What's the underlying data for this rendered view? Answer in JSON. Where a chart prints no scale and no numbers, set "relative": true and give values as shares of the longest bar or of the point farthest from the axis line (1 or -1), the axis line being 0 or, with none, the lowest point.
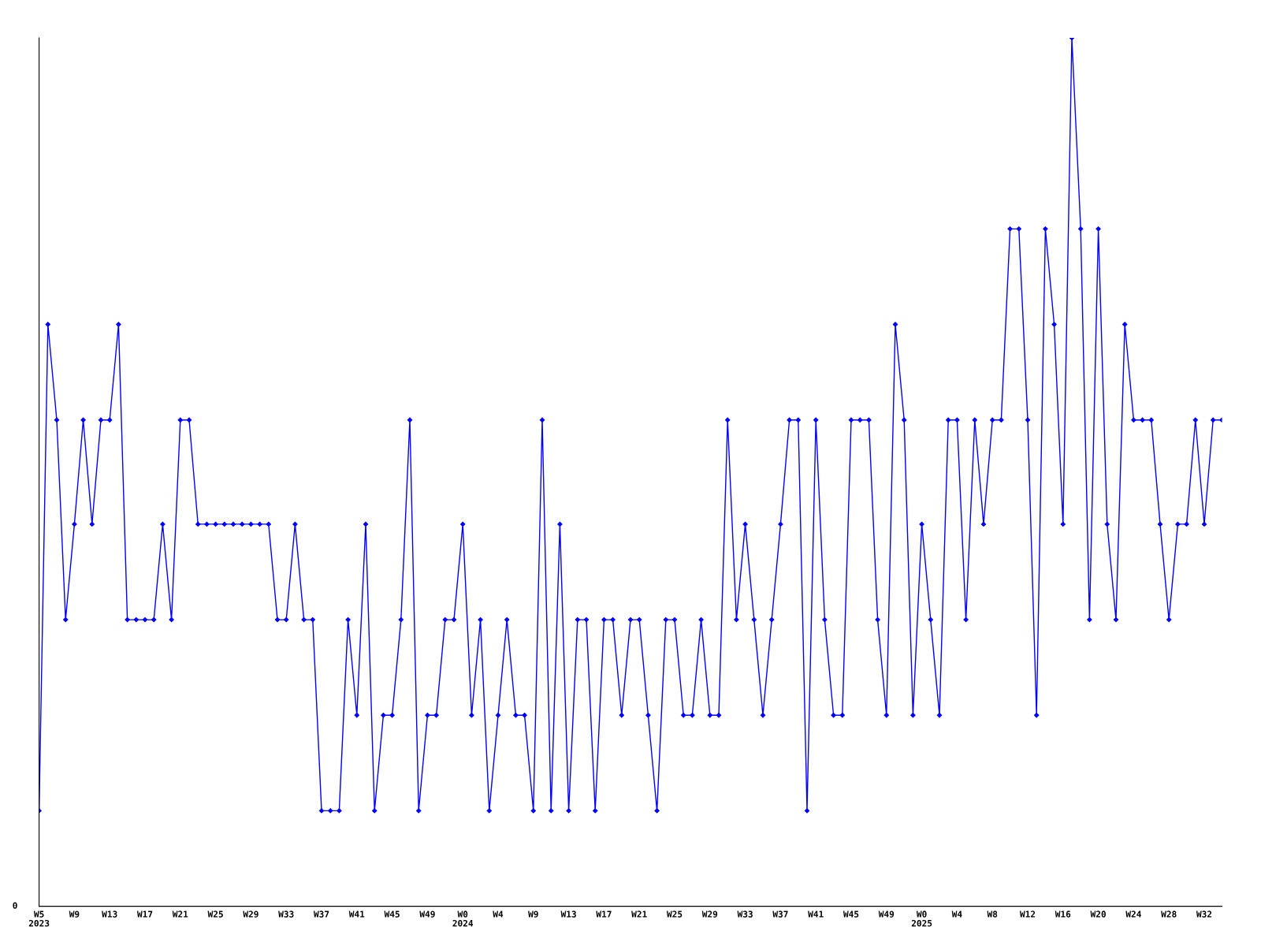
{
  "chart_data": {
    "type": "line",
    "relative": true,
    "color": "#0000ff",
    "marker": "diamond",
    "line_style": "solid",
    "grid": false,
    "legend": false,
    "categories": [
      "W5\n2023",
      null,
      null,
      null,
      "W9",
      null,
      null,
      null,
      "W13",
      null,
      null,
      null,
      "W17",
      null,
      null,
      null,
      "W21",
      null,
      null,
      null,
      "W25",
      null,
      null,
      null,
      "W29",
      null,
      null,
      null,
      "W33",
      null,
      null,
      null,
      "W37",
      null,
      null,
      null,
      "W41",
      null,
      null,
      null,
      "W45",
      null,
      null,
      null,
      "W49",
      null,
      null,
      null,
      "W0\n2024",
      null,
      null,
      null,
      "W4",
      null,
      null,
      null,
      "W9",
      null,
      null,
      null,
      "W13",
      null,
      null,
      null,
      "W17",
      null,
      null,
      null,
      "W21",
      null,
      null,
      null,
      "W25",
      null,
      null,
      null,
      "W29",
      null,
      null,
      null,
      "W33",
      null,
      null,
      null,
      "W37",
      null,
      null,
      null,
      "W41",
      null,
      null,
      null,
      "W45",
      null,
      null,
      null,
      "W49",
      null,
      null,
      null,
      "W0\n2025",
      null,
      null,
      null,
      "W4",
      null,
      null,
      null,
      "W8",
      null,
      null,
      null,
      "W12",
      null,
      null,
      null,
      "W16",
      null,
      null,
      null,
      "W20",
      null,
      null,
      null,
      "W24",
      null,
      null,
      null,
      "W28",
      null,
      null,
      null,
      "W32",
      null,
      null
    ],
    "values": [
      0.11,
      0.67,
      0.56,
      0.33,
      0.44,
      0.56,
      0.44,
      0.56,
      0.56,
      0.67,
      0.33,
      0.33,
      0.33,
      0.33,
      0.44,
      0.33,
      0.56,
      0.56,
      0.44,
      0.44,
      0.44,
      0.44,
      0.44,
      0.44,
      0.44,
      0.44,
      0.44,
      0.33,
      0.33,
      0.44,
      0.33,
      0.33,
      0.11,
      0.11,
      0.11,
      0.33,
      0.22,
      0.44,
      0.11,
      0.22,
      0.22,
      0.33,
      0.56,
      0.11,
      0.22,
      0.22,
      0.33,
      0.33,
      0.44,
      0.22,
      0.33,
      0.11,
      0.22,
      0.33,
      0.22,
      0.22,
      0.11,
      0.56,
      0.11,
      0.44,
      0.11,
      0.33,
      0.33,
      0.11,
      0.33,
      0.33,
      0.22,
      0.33,
      0.33,
      0.22,
      0.11,
      0.33,
      0.33,
      0.22,
      0.22,
      0.33,
      0.22,
      0.22,
      0.56,
      0.33,
      0.44,
      0.33,
      0.22,
      0.33,
      0.44,
      0.56,
      0.56,
      0.11,
      0.56,
      0.33,
      0.22,
      0.22,
      0.56,
      0.56,
      0.56,
      0.33,
      0.22,
      0.67,
      0.56,
      0.22,
      0.44,
      0.33,
      0.22,
      0.56,
      0.56,
      0.33,
      0.56,
      0.44,
      0.56,
      0.56,
      0.78,
      0.78,
      0.56,
      0.22,
      0.78,
      0.67,
      0.44,
      1,
      0.78,
      0.33,
      0.78,
      0.44,
      0.33,
      0.67,
      0.56,
      0.56,
      0.56,
      0.44,
      0.33,
      0.44,
      0.44,
      0.56,
      0.44,
      0.56,
      0.56
    ],
    "annotations": [
      "0"
    ]
  }
}
